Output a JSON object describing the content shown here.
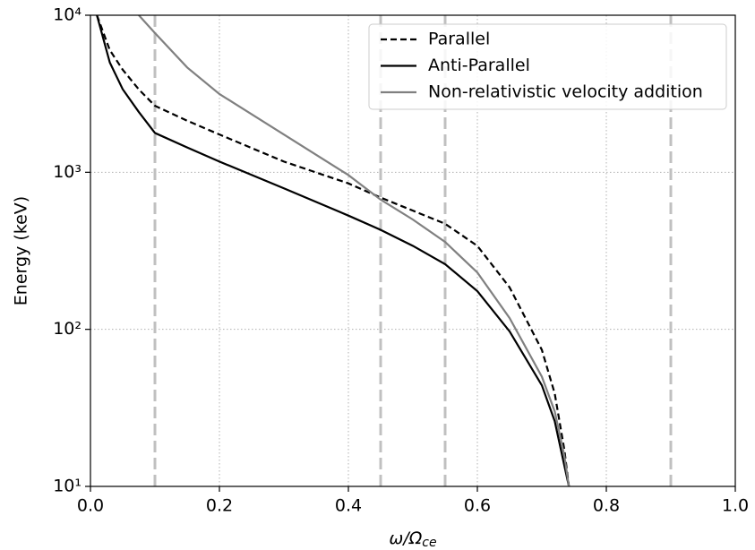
{
  "chart_data": {
    "type": "line",
    "x_label": "ω/Ω",
    "x_label_sub": "ce",
    "y_label": "Energy (keV)",
    "x": [
      0.01,
      0.03,
      0.05,
      0.075,
      0.1,
      0.15,
      0.2,
      0.3,
      0.4,
      0.45,
      0.5,
      0.55,
      0.6,
      0.65,
      0.7,
      0.72,
      0.735,
      0.742
    ],
    "series": [
      {
        "name": "Parallel",
        "color": "#000000",
        "dash": true,
        "values": [
          10000,
          6000,
          4500,
          3370,
          2650,
          2130,
          1740,
          1170,
          850,
          690,
          570,
          470,
          340,
          185,
          74,
          39,
          17,
          10
        ]
      },
      {
        "name": "Anti-Parallel",
        "color": "#000000",
        "dash": false,
        "values": [
          10000,
          5000,
          3380,
          2420,
          1780,
          1440,
          1170,
          790,
          530,
          430,
          340,
          260,
          175,
          97,
          44,
          26,
          13.5,
          10
        ]
      },
      {
        "name": "Non-relativistic velocity addition",
        "color": "#808080",
        "dash": false,
        "values": [
          null,
          null,
          null,
          10000,
          7700,
          4650,
          3150,
          1740,
          960,
          670,
          500,
          360,
          230,
          118,
          50,
          30,
          15.6,
          10
        ]
      }
    ],
    "vlines": [
      0.1,
      0.45,
      0.55,
      0.9
    ],
    "vline_color": "#c0c0c0",
    "xlim": [
      0,
      1
    ],
    "xticks": [
      {
        "value": 0,
        "label": "0.0"
      },
      0.2,
      0.4,
      0.6,
      0.8,
      {
        "value": 1,
        "label": "1.0"
      }
    ],
    "ylim": [
      10,
      10000
    ],
    "y_log": true,
    "yticks": [
      {
        "value": 10,
        "label": "10¹"
      },
      {
        "value": 100,
        "label": "10²"
      },
      {
        "value": 1000,
        "label": "10³"
      },
      {
        "value": 10000,
        "label": "10⁴"
      }
    ],
    "grid": true,
    "legend": "upper right"
  }
}
